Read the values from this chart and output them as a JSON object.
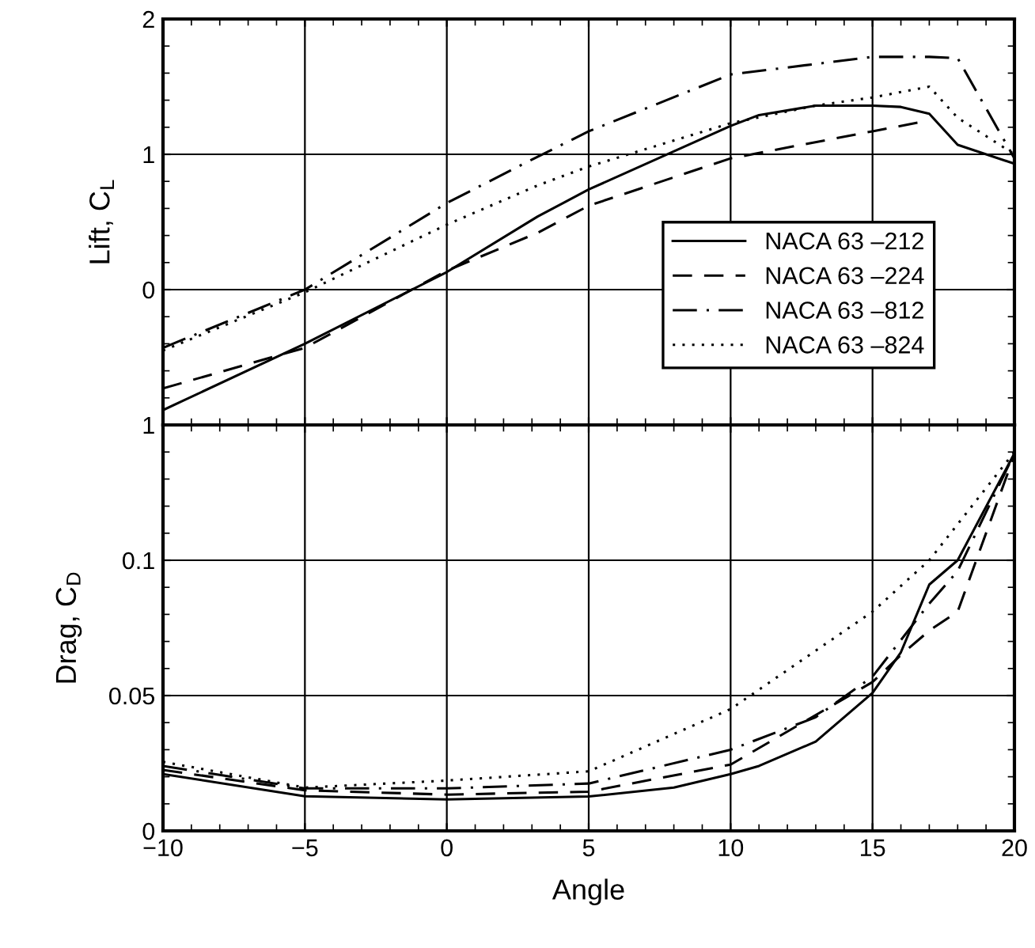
{
  "chart_data": [
    {
      "type": "line",
      "ylabel": "Lift, C$_{L}$",
      "xlim": [
        -10,
        20
      ],
      "xticks": [
        -10,
        -5,
        0,
        5,
        10,
        15,
        20
      ],
      "ylim": [
        -1,
        2
      ],
      "yticks": [
        {
          "value": -1,
          "label": "1"
        },
        0,
        1,
        2
      ],
      "tick_labels": "y",
      "grid": true,
      "legend": "right",
      "marker": "none",
      "series": [
        {
          "name": "NACA 63 –212",
          "color": "#000000",
          "line_style": "solid",
          "x": [
            -10,
            -5,
            0,
            3.2,
            5,
            10,
            11,
            13,
            15,
            16,
            17,
            18,
            20
          ],
          "values": [
            -0.89,
            -0.4,
            0.13,
            0.54,
            0.74,
            1.21,
            1.29,
            1.36,
            1.36,
            1.35,
            1.3,
            1.07,
            0.93
          ]
        },
        {
          "name": "NACA 63 –224",
          "color": "#000000",
          "line_style": "dashed",
          "x": [
            -10,
            -5,
            0,
            3.2,
            5,
            10,
            15,
            17
          ],
          "values": [
            -0.73,
            -0.43,
            0.14,
            0.42,
            0.62,
            0.97,
            1.17,
            1.25
          ]
        },
        {
          "name": "NACA 63 –812",
          "color": "#000000",
          "line_style": "dashdot",
          "x": [
            -10,
            -5,
            0,
            2.8,
            5,
            10,
            15,
            17,
            18,
            20
          ],
          "values": [
            -0.43,
            0.0,
            0.64,
            0.94,
            1.17,
            1.59,
            1.72,
            1.72,
            1.71,
            0.97
          ]
        },
        {
          "name": "NACA 63 –824",
          "color": "#000000",
          "line_style": "dotted",
          "x": [
            -10,
            -5,
            0,
            3.2,
            5,
            10,
            13,
            15,
            17,
            18,
            20
          ],
          "values": [
            -0.45,
            -0.02,
            0.48,
            0.77,
            0.91,
            1.23,
            1.36,
            1.42,
            1.5,
            1.27,
            1.0
          ]
        }
      ]
    },
    {
      "type": "line",
      "xlabel": "Angle",
      "ylabel": "Drag, C$_{D}$",
      "xlim": [
        -10,
        20
      ],
      "xticks": [
        {
          "value": -10,
          "label": "−10"
        },
        {
          "value": -5,
          "label": "−5"
        },
        0,
        5,
        10,
        15,
        20
      ],
      "ylim": [
        0,
        0.15
      ],
      "yticks": [
        0,
        0.05,
        0.1,
        {
          "value": 0.15,
          "label": null
        }
      ],
      "grid": true,
      "marker": "none",
      "series": [
        {
          "color": "#000000",
          "line_style": "solid",
          "x": [
            -10,
            -5,
            0,
            5,
            8,
            10,
            11,
            13,
            15,
            16,
            17,
            18,
            20
          ],
          "values": [
            0.021,
            0.0128,
            0.0116,
            0.0127,
            0.016,
            0.021,
            0.024,
            0.033,
            0.051,
            0.066,
            0.091,
            0.1,
            0.1395
          ]
        },
        {
          "color": "#000000",
          "line_style": "dashed",
          "x": [
            -10,
            -5,
            0,
            5,
            10,
            15,
            16,
            17,
            18,
            20
          ],
          "values": [
            0.0225,
            0.015,
            0.0134,
            0.0145,
            0.0245,
            0.055,
            0.065,
            0.074,
            0.081,
            0.139
          ]
        },
        {
          "color": "#000000",
          "line_style": "dashdot",
          "x": [
            -10,
            -5,
            0,
            5,
            10,
            13,
            15,
            17,
            18,
            20
          ],
          "values": [
            0.024,
            0.0157,
            0.0157,
            0.0175,
            0.03,
            0.042,
            0.057,
            0.084,
            0.096,
            0.1395
          ]
        },
        {
          "color": "#000000",
          "line_style": "dotted",
          "x": [
            -10,
            -5,
            0,
            5,
            10,
            15,
            17,
            20
          ],
          "values": [
            0.0255,
            0.016,
            0.0186,
            0.022,
            0.045,
            0.081,
            0.1,
            0.14
          ]
        }
      ]
    }
  ]
}
